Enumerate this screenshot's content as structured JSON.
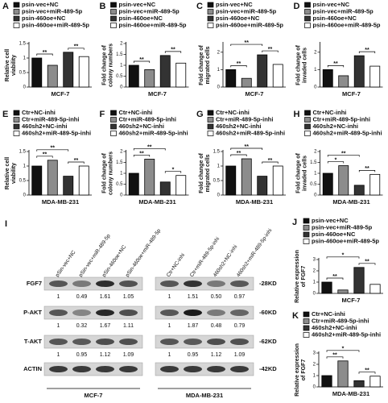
{
  "chart_data": [
    {
      "type": "bar",
      "panel": "A",
      "ylabel": [
        "Relative cell",
        "viability"
      ],
      "categories": [
        "MCF-7"
      ],
      "ylim": [
        0,
        1.5
      ],
      "yticks": [
        0,
        0.5,
        1,
        1.5
      ],
      "series": [
        {
          "name": "psin-vec+NC",
          "color": "#111111",
          "values": [
            1.0
          ]
        },
        {
          "name": "psin-vec+miR-489-5p",
          "color": "#8c8c8c",
          "values": [
            0.75
          ]
        },
        {
          "name": "psin-460oe+NC",
          "color": "#333333",
          "values": [
            1.2
          ]
        },
        {
          "name": "psin-460oe+miR-489-5p",
          "color": "#ffffff",
          "values": [
            1.05
          ]
        }
      ],
      "significance": [
        {
          "bars": [
            0,
            1
          ],
          "label": "**"
        },
        {
          "bars": [
            2,
            3
          ],
          "label": "**"
        }
      ]
    },
    {
      "type": "bar",
      "panel": "B",
      "ylabel": [
        "Fold change of",
        "colony numbers"
      ],
      "categories": [
        "MCF-7"
      ],
      "ylim": [
        0,
        2
      ],
      "yticks": [
        0,
        0.5,
        1,
        1.5,
        2
      ],
      "series": [
        {
          "name": "psin-vec+NC",
          "color": "#111111",
          "values": [
            1.0
          ]
        },
        {
          "name": "psin-vec+miR-489-5p",
          "color": "#8c8c8c",
          "values": [
            0.8
          ]
        },
        {
          "name": "psin-460oe+NC",
          "color": "#333333",
          "values": [
            1.45
          ]
        },
        {
          "name": "psin-460oe+miR-489-5p",
          "color": "#ffffff",
          "values": [
            1.1
          ]
        }
      ],
      "significance": [
        {
          "bars": [
            0,
            1
          ],
          "label": "**"
        },
        {
          "bars": [
            2,
            3
          ],
          "label": "**"
        }
      ]
    },
    {
      "type": "bar",
      "panel": "C",
      "ylabel": [
        "Fold change of",
        "migrated cells"
      ],
      "categories": [
        "MCF-7"
      ],
      "ylim": [
        0,
        2.5
      ],
      "yticks": [
        0,
        1,
        2
      ],
      "series": [
        {
          "name": "psin-vec+NC",
          "color": "#111111",
          "values": [
            1.0
          ]
        },
        {
          "name": "psin-vec+miR-489-5p",
          "color": "#8c8c8c",
          "values": [
            0.5
          ]
        },
        {
          "name": "psin-460oe+NC",
          "color": "#333333",
          "values": [
            1.85
          ]
        },
        {
          "name": "psin-460oe+miR-489-5p",
          "color": "#ffffff",
          "values": [
            1.3
          ]
        }
      ],
      "significance": [
        {
          "bars": [
            0,
            1
          ],
          "label": "**"
        },
        {
          "bars": [
            2,
            3
          ],
          "label": "**"
        },
        {
          "bars": [
            0,
            2
          ],
          "label": "**"
        }
      ]
    },
    {
      "type": "bar",
      "panel": "D",
      "ylabel": [
        "Fold change of",
        "invaded cells"
      ],
      "categories": [
        "MCF-7"
      ],
      "ylim": [
        0,
        2.5
      ],
      "yticks": [
        0,
        1,
        2
      ],
      "series": [
        {
          "name": "psin-vec+NC",
          "color": "#111111",
          "values": [
            1.0
          ]
        },
        {
          "name": "psin-vec+miR-489-5p",
          "color": "#8c8c8c",
          "values": [
            0.65
          ]
        },
        {
          "name": "psin-460oe+NC",
          "color": "#333333",
          "values": [
            1.8
          ]
        },
        {
          "name": "psin-460oe+miR-489-5p",
          "color": "#ffffff",
          "values": [
            1.2
          ]
        }
      ],
      "significance": [
        {
          "bars": [
            0,
            1
          ],
          "label": "**"
        },
        {
          "bars": [
            2,
            3
          ],
          "label": "**"
        }
      ]
    },
    {
      "type": "bar",
      "panel": "E",
      "ylabel": [
        "Relative cell",
        "viability"
      ],
      "categories": [
        "MDA-MB-231"
      ],
      "ylim": [
        0,
        1.5
      ],
      "yticks": [
        0,
        0.5,
        1,
        1.5
      ],
      "series": [
        {
          "name": "Ctr+NC-inhi",
          "color": "#111111",
          "values": [
            1.0
          ]
        },
        {
          "name": "Ctr+miR-489-5p-inhi",
          "color": "#8c8c8c",
          "values": [
            1.2
          ]
        },
        {
          "name": "460sh2+NC-inhi",
          "color": "#333333",
          "values": [
            0.65
          ]
        },
        {
          "name": "460sh2+miR-489-5p-inhi",
          "color": "#ffffff",
          "values": [
            1.0
          ]
        }
      ],
      "significance": [
        {
          "bars": [
            0,
            1
          ],
          "label": "**"
        },
        {
          "bars": [
            2,
            3
          ],
          "label": "**"
        },
        {
          "bars": [
            0,
            2
          ],
          "label": "**"
        }
      ]
    },
    {
      "type": "bar",
      "panel": "F",
      "ylabel": [
        "Fold change of",
        "colony numbers"
      ],
      "categories": [
        "MDA-MB-231"
      ],
      "ylim": [
        0,
        2
      ],
      "yticks": [
        0,
        0.5,
        1,
        1.5,
        2
      ],
      "series": [
        {
          "name": "Ctr+NC-inhi",
          "color": "#111111",
          "values": [
            1.0
          ]
        },
        {
          "name": "Ctr+miR-489-5p-inhi",
          "color": "#8c8c8c",
          "values": [
            1.65
          ]
        },
        {
          "name": "460sh2+NC-inhi",
          "color": "#333333",
          "values": [
            0.6
          ]
        },
        {
          "name": "460sh2+miR-489-5p-inhi",
          "color": "#ffffff",
          "values": [
            0.9
          ]
        }
      ],
      "significance": [
        {
          "bars": [
            0,
            1
          ],
          "label": "**"
        },
        {
          "bars": [
            2,
            3
          ],
          "label": "*"
        },
        {
          "bars": [
            0,
            2
          ],
          "label": "**"
        }
      ]
    },
    {
      "type": "bar",
      "panel": "G",
      "ylabel": [
        "Fold change of",
        "migrated cells"
      ],
      "categories": [
        "MDA-MB-231"
      ],
      "ylim": [
        0,
        1.5
      ],
      "yticks": [
        0,
        0.5,
        1,
        1.5
      ],
      "series": [
        {
          "name": "Ctr+NC-inhi",
          "color": "#111111",
          "values": [
            1.0
          ]
        },
        {
          "name": "Ctr+miR-489-5p-inhi",
          "color": "#8c8c8c",
          "values": [
            1.25
          ]
        },
        {
          "name": "460sh2+NC-inhi",
          "color": "#333333",
          "values": [
            0.65
          ]
        },
        {
          "name": "460sh2+miR-489-5p-inhi",
          "color": "#ffffff",
          "values": [
            1.0
          ]
        }
      ],
      "significance": [
        {
          "bars": [
            0,
            1
          ],
          "label": "**"
        },
        {
          "bars": [
            2,
            3
          ],
          "label": "**"
        },
        {
          "bars": [
            0,
            2
          ],
          "label": "**"
        }
      ]
    },
    {
      "type": "bar",
      "panel": "H",
      "ylabel": [
        "Fold change of",
        "invaded cells"
      ],
      "categories": [
        "MDA-MB-231"
      ],
      "ylim": [
        0,
        2
      ],
      "yticks": [
        0,
        0.5,
        1,
        1.5,
        2
      ],
      "series": [
        {
          "name": "Ctr+NC-inhi",
          "color": "#111111",
          "values": [
            1.0
          ]
        },
        {
          "name": "Ctr+miR-489-5p-inhi",
          "color": "#8c8c8c",
          "values": [
            1.35
          ]
        },
        {
          "name": "460sh2+NC-inhi",
          "color": "#333333",
          "values": [
            0.45
          ]
        },
        {
          "name": "460sh2+miR-489-5p-inhi",
          "color": "#ffffff",
          "values": [
            0.95
          ]
        }
      ],
      "significance": [
        {
          "bars": [
            0,
            1
          ],
          "label": "*"
        },
        {
          "bars": [
            2,
            3
          ],
          "label": "**"
        },
        {
          "bars": [
            0,
            2
          ],
          "label": "**"
        }
      ]
    },
    {
      "type": "bar",
      "panel": "J",
      "ylabel": [
        "Relative expression",
        "of FGF7"
      ],
      "categories": [
        "MCF-7"
      ],
      "ylim": [
        0,
        3
      ],
      "yticks": [
        0,
        1,
        2,
        3
      ],
      "series": [
        {
          "name": "psin-vec+NC",
          "color": "#111111",
          "values": [
            1.0
          ]
        },
        {
          "name": "psin-vec+miR-489-5p",
          "color": "#8c8c8c",
          "values": [
            0.3
          ]
        },
        {
          "name": "psin-460oe+NC",
          "color": "#333333",
          "values": [
            2.3
          ]
        },
        {
          "name": "psin-460oe+miR-489-5p",
          "color": "#ffffff",
          "values": [
            0.8
          ]
        }
      ],
      "significance": [
        {
          "bars": [
            0,
            1
          ],
          "label": "**"
        },
        {
          "bars": [
            2,
            3
          ],
          "label": "**"
        },
        {
          "bars": [
            0,
            2
          ],
          "label": "*"
        }
      ]
    },
    {
      "type": "bar",
      "panel": "K",
      "ylabel": [
        "Relative expression",
        "of FGF7"
      ],
      "categories": [
        "MDA-MB-231"
      ],
      "ylim": [
        0,
        3
      ],
      "yticks": [
        0,
        1,
        2,
        3
      ],
      "series": [
        {
          "name": "Ctr+NC-inhi",
          "color": "#111111",
          "values": [
            1.0
          ]
        },
        {
          "name": "Ctr+miR-489-5p-inhi",
          "color": "#8c8c8c",
          "values": [
            2.3
          ]
        },
        {
          "name": "460sh2+NC-inhi",
          "color": "#333333",
          "values": [
            0.55
          ]
        },
        {
          "name": "460sh2+miR-489-5p-inhi",
          "color": "#ffffff",
          "values": [
            0.95
          ]
        }
      ],
      "significance": [
        {
          "bars": [
            0,
            1
          ],
          "label": "**"
        },
        {
          "bars": [
            2,
            3
          ],
          "label": "**"
        },
        {
          "bars": [
            0,
            2
          ],
          "label": "*"
        }
      ]
    }
  ],
  "blot": {
    "panel": "I",
    "groups": [
      {
        "name": "MCF-7",
        "lanes": [
          "pSin-vec+NC",
          "pSin-vec+miR-489-5p",
          "pSin-460oe+NC",
          "pSin-460oe+miR-489-5p"
        ]
      },
      {
        "name": "MDA-MB-231",
        "lanes": [
          "Ctr+NC-inhi",
          "Ctr+miR-489-5p-inhi",
          "460sh2+NC-inhi",
          "460sh2+miR-489-5p-inhi"
        ]
      }
    ],
    "rows": [
      {
        "name": "FGF7",
        "size": "-28KD",
        "quant": [
          [
            "1",
            "0.49",
            "1.61",
            "1.05"
          ],
          [
            "1",
            "1.51",
            "0.50",
            "0.97"
          ]
        ]
      },
      {
        "name": "P-AKT",
        "size": "-60KD",
        "quant": [
          [
            "1",
            "0.32",
            "1.67",
            "1.11"
          ],
          [
            "1",
            "1.87",
            "0.48",
            "0.79"
          ]
        ]
      },
      {
        "name": "T-AKT",
        "size": "-62KD",
        "quant": [
          [
            "1",
            "0.95",
            "1.12",
            "1.09"
          ],
          [
            "1",
            "0.95",
            "1.12",
            "1.09"
          ]
        ]
      },
      {
        "name": "ACTIN",
        "size": "-42KD"
      }
    ]
  }
}
